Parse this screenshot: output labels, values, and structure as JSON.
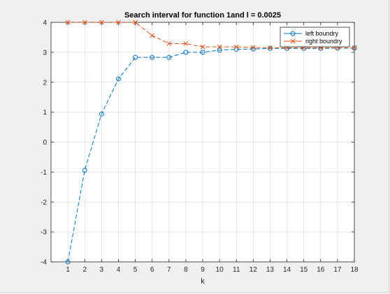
{
  "chart_data": {
    "type": "line",
    "title": "Search interval for function 1and l = 0.0025",
    "xlabel": "k",
    "ylabel": "",
    "xlim": [
      0,
      18
    ],
    "ylim": [
      -4,
      4
    ],
    "xticks": [
      1,
      2,
      3,
      4,
      5,
      6,
      7,
      8,
      9,
      10,
      11,
      12,
      13,
      14,
      15,
      16,
      17,
      18
    ],
    "yticks": [
      -4,
      -3,
      -2,
      -1,
      0,
      1,
      2,
      3,
      4
    ],
    "grid": true,
    "legend_position": "top-right",
    "x": [
      1,
      2,
      3,
      4,
      5,
      6,
      7,
      8,
      9,
      10,
      11,
      12,
      13,
      14,
      15,
      16,
      17,
      18
    ],
    "series": [
      {
        "name": "left boundry",
        "color": "#0072BD",
        "marker": "circle",
        "line_style": "dashed",
        "values": [
          -4.0,
          -0.94,
          0.94,
          2.11,
          2.83,
          2.83,
          2.83,
          3.0,
          3.0,
          3.07,
          3.1,
          3.11,
          3.13,
          3.13,
          3.13,
          3.13,
          3.14,
          3.14
        ]
      },
      {
        "name": "right boundry",
        "color": "#D95319",
        "marker": "x",
        "line_style": "dashed",
        "values": [
          4.0,
          4.0,
          4.0,
          4.0,
          4.0,
          3.56,
          3.29,
          3.29,
          3.18,
          3.18,
          3.18,
          3.16,
          3.15,
          3.15,
          3.15,
          3.15,
          3.15,
          3.15
        ]
      }
    ]
  }
}
